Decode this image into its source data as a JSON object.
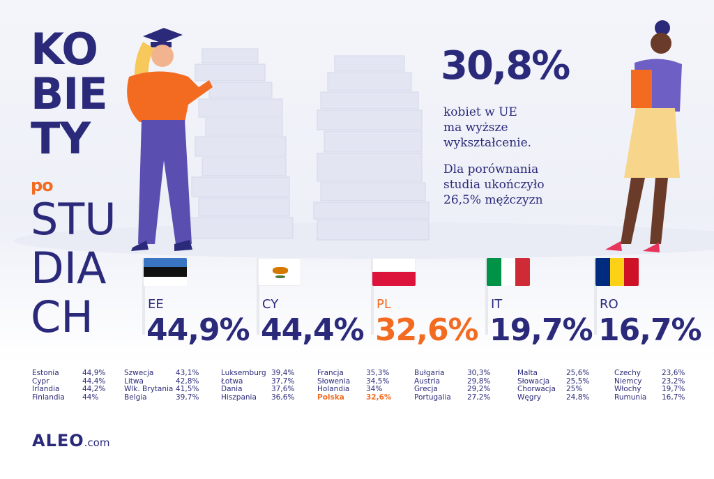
{
  "title": {
    "line1": "KO",
    "line2": "BIE",
    "line3": "TY",
    "line4": "po",
    "line5": "STU",
    "line6": "DIA",
    "line7": "CH"
  },
  "headline": {
    "value": "30,8%",
    "text1": "kobiet w UE",
    "text2": "ma wyższe",
    "text3": "wykształcenie.",
    "text4": "Dla porównania",
    "text5": "studia ukończyło",
    "text6": "26,5% mężczyzn"
  },
  "colors": {
    "navy": "#2b2a7a",
    "orange": "#f26b21",
    "highlight": "PL"
  },
  "chart_data": {
    "type": "table",
    "highlight_country": "Polska",
    "featured": [
      {
        "code": "EE",
        "value": "44,9%"
      },
      {
        "code": "CY",
        "value": "44,4%"
      },
      {
        "code": "PL",
        "value": "32,6%"
      },
      {
        "code": "IT",
        "value": "19,7%"
      },
      {
        "code": "RO",
        "value": "16,7%"
      }
    ],
    "columns": [
      [
        [
          "Estonia",
          "44,9%"
        ],
        [
          "Cypr",
          "44,4%"
        ],
        [
          "Irlandia",
          "44,2%"
        ],
        [
          "Finlandia",
          "44%"
        ]
      ],
      [
        [
          "Szwecja",
          "43,1%"
        ],
        [
          "Litwa",
          "42,8%"
        ],
        [
          "Wlk. Brytania",
          "41,5%"
        ],
        [
          "Belgia",
          "39,7%"
        ]
      ],
      [
        [
          "Luksemburg",
          "39,4%"
        ],
        [
          "Łotwa",
          "37,7%"
        ],
        [
          "Dania",
          "37,6%"
        ],
        [
          "Hiszpania",
          "36,6%"
        ]
      ],
      [
        [
          "Francja",
          "35,3%"
        ],
        [
          "Słowenia",
          "34,5%"
        ],
        [
          "Holandia",
          "34%"
        ],
        [
          "Polska",
          "32,6%"
        ]
      ],
      [
        [
          "Bułgaria",
          "30,3%"
        ],
        [
          "Austria",
          "29,8%"
        ],
        [
          "Grecja",
          "29,2%"
        ],
        [
          "Portugalia",
          "27,2%"
        ]
      ],
      [
        [
          "Malta",
          "25,6%"
        ],
        [
          "Słowacja",
          "25,5%"
        ],
        [
          "Chorwacja",
          "25%"
        ],
        [
          "Węgry",
          "24,8%"
        ]
      ],
      [
        [
          "Czechy",
          "23,6%"
        ],
        [
          "Niemcy",
          "23,2%"
        ],
        [
          "Włochy",
          "19,7%"
        ],
        [
          "Rumunia",
          "16,7%"
        ]
      ]
    ]
  },
  "logo": {
    "brand": "ALEO",
    "suffix": ".com"
  }
}
